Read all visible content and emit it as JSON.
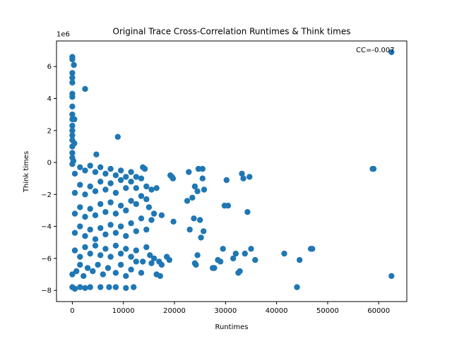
{
  "chart_data": {
    "type": "scatter",
    "title": "Original Trace Cross-Correlation Runtimes & Think times",
    "xlabel": "Runtimes",
    "ylabel": "Think times",
    "y_offset_text": "1e6",
    "annotation": "CC=-0.007",
    "xlim": [
      -3100,
      65500
    ],
    "ylim": [
      -8.7,
      7.6
    ],
    "x_ticks": [
      0,
      10000,
      20000,
      30000,
      40000,
      50000,
      60000
    ],
    "x_tick_labels": [
      "0",
      "10000",
      "20000",
      "30000",
      "40000",
      "50000",
      "60000"
    ],
    "y_ticks": [
      -8,
      -6,
      -4,
      -2,
      0,
      2,
      4,
      6
    ],
    "y_tick_labels": [
      "−8",
      "−6",
      "−4",
      "−2",
      "0",
      "2",
      "4",
      "6"
    ],
    "grid": false,
    "color": "#1f77b4",
    "series": [
      {
        "points": [
          [
            0,
            6.6
          ],
          [
            0,
            6.45
          ],
          [
            300,
            6.1
          ],
          [
            0,
            5.6
          ],
          [
            0,
            5.3
          ],
          [
            0,
            5.0
          ],
          [
            0,
            4.3
          ],
          [
            0,
            4.1
          ],
          [
            2500,
            4.6
          ],
          [
            0,
            3.5
          ],
          [
            0,
            3.0
          ],
          [
            0,
            2.7
          ],
          [
            400,
            2.7
          ],
          [
            0,
            2.3
          ],
          [
            0,
            2.0
          ],
          [
            0,
            1.7
          ],
          [
            0,
            1.4
          ],
          [
            400,
            1.2
          ],
          [
            0,
            1.0
          ],
          [
            0,
            0.6
          ],
          [
            0,
            0.3
          ],
          [
            200,
            0.1
          ],
          [
            0,
            -0.1
          ],
          [
            8900,
            1.6
          ],
          [
            4700,
            0.5
          ],
          [
            0,
            -7.8
          ],
          [
            500,
            -7.9
          ],
          [
            1500,
            -7.8
          ],
          [
            2500,
            -7.85
          ],
          [
            3500,
            -7.8
          ],
          [
            5500,
            -7.8
          ],
          [
            7200,
            -7.8
          ],
          [
            8500,
            -7.8
          ],
          [
            10500,
            -7.85
          ],
          [
            12000,
            -7.8
          ],
          [
            0,
            -7.0
          ],
          [
            800,
            -6.8
          ],
          [
            1500,
            -6.4
          ],
          [
            2200,
            -7.1
          ],
          [
            3000,
            -6.6
          ],
          [
            4000,
            -6.8
          ],
          [
            5000,
            -6.4
          ],
          [
            6000,
            -7.0
          ],
          [
            7000,
            -6.6
          ],
          [
            8500,
            -6.9
          ],
          [
            9500,
            -6.4
          ],
          [
            10500,
            -7.1
          ],
          [
            11500,
            -6.7
          ],
          [
            12500,
            -6.2
          ],
          [
            13500,
            -6.9
          ],
          [
            500,
            -5.5
          ],
          [
            1500,
            -5.9
          ],
          [
            2500,
            -5.3
          ],
          [
            3500,
            -5.7
          ],
          [
            4500,
            -5.2
          ],
          [
            5500,
            -5.8
          ],
          [
            6500,
            -5.4
          ],
          [
            7500,
            -5.9
          ],
          [
            8500,
            -5.2
          ],
          [
            9500,
            -5.7
          ],
          [
            10500,
            -5.4
          ],
          [
            11500,
            -5.9
          ],
          [
            12500,
            -5.5
          ],
          [
            13800,
            -6.2
          ],
          [
            14500,
            -5.3
          ],
          [
            500,
            -4.4
          ],
          [
            1500,
            -4.0
          ],
          [
            2500,
            -4.6
          ],
          [
            3500,
            -4.2
          ],
          [
            4500,
            -4.8
          ],
          [
            5500,
            -4.1
          ],
          [
            6500,
            -4.5
          ],
          [
            7500,
            -3.9
          ],
          [
            8500,
            -4.4
          ],
          [
            9500,
            -4.0
          ],
          [
            10500,
            -4.6
          ],
          [
            11500,
            -3.8
          ],
          [
            12500,
            -4.3
          ],
          [
            13500,
            -3.5
          ],
          [
            14500,
            -4.2
          ],
          [
            500,
            -3.2
          ],
          [
            1500,
            -2.8
          ],
          [
            2500,
            -3.4
          ],
          [
            3500,
            -2.9
          ],
          [
            4500,
            -3.3
          ],
          [
            5500,
            -2.6
          ],
          [
            6500,
            -3.1
          ],
          [
            7500,
            -2.5
          ],
          [
            8500,
            -3.2
          ],
          [
            9500,
            -2.7
          ],
          [
            10500,
            -3.0
          ],
          [
            11500,
            -2.4
          ],
          [
            12500,
            -2.6
          ],
          [
            13500,
            -2.1
          ],
          [
            14500,
            -2.3
          ],
          [
            500,
            -1.9
          ],
          [
            1500,
            -1.4
          ],
          [
            2500,
            -2.0
          ],
          [
            3500,
            -1.5
          ],
          [
            4500,
            -1.8
          ],
          [
            5500,
            -1.2
          ],
          [
            6500,
            -1.7
          ],
          [
            7500,
            -1.3
          ],
          [
            8500,
            -1.9
          ],
          [
            9500,
            -1.1
          ],
          [
            10500,
            -1.6
          ],
          [
            11500,
            -1.2
          ],
          [
            12500,
            -1.6
          ],
          [
            13500,
            -1.0
          ],
          [
            14500,
            -1.5
          ],
          [
            500,
            -0.7
          ],
          [
            1500,
            -0.3
          ],
          [
            2500,
            -0.5
          ],
          [
            3500,
            -0.2
          ],
          [
            4500,
            -0.6
          ],
          [
            5500,
            -0.3
          ],
          [
            6500,
            -0.7
          ],
          [
            7500,
            -0.4
          ],
          [
            8500,
            -0.8
          ],
          [
            9500,
            -0.5
          ],
          [
            10500,
            -0.9
          ],
          [
            11500,
            -0.6
          ],
          [
            12500,
            -0.9
          ],
          [
            13800,
            -0.3
          ],
          [
            14200,
            -0.4
          ],
          [
            15500,
            -1.7
          ],
          [
            16000,
            -3.2
          ],
          [
            15000,
            -2.8
          ],
          [
            15500,
            -3.6
          ],
          [
            16500,
            -1.6
          ],
          [
            15200,
            -5.8
          ],
          [
            16000,
            -6.0
          ],
          [
            15500,
            -6.3
          ],
          [
            17000,
            -6.2
          ],
          [
            17500,
            -6.4
          ],
          [
            17200,
            -7.1
          ],
          [
            16500,
            -7.0
          ],
          [
            17500,
            -3.3
          ],
          [
            18500,
            -5.9
          ],
          [
            19000,
            -6.1
          ],
          [
            19200,
            -0.8
          ],
          [
            19700,
            -1.0
          ],
          [
            19500,
            -0.9
          ],
          [
            19800,
            -3.7
          ],
          [
            22500,
            -2.4
          ],
          [
            22800,
            -0.6
          ],
          [
            23000,
            -4.2
          ],
          [
            23500,
            -2.2
          ],
          [
            23800,
            -3.5
          ],
          [
            24000,
            -1.5
          ],
          [
            24000,
            -6.3
          ],
          [
            24200,
            -6.4
          ],
          [
            24500,
            -1.8
          ],
          [
            24700,
            -0.4
          ],
          [
            24500,
            -5.8
          ],
          [
            25000,
            -3.6
          ],
          [
            25200,
            -4.7
          ],
          [
            25500,
            -0.4
          ],
          [
            25800,
            -1.7
          ],
          [
            25700,
            -4.3
          ],
          [
            25500,
            -1.0
          ],
          [
            27500,
            -6.6
          ],
          [
            27800,
            -6.6
          ],
          [
            28500,
            -6.1
          ],
          [
            29000,
            -6.2
          ],
          [
            29500,
            -5.4
          ],
          [
            29800,
            -2.7
          ],
          [
            30200,
            -1.1
          ],
          [
            30500,
            -2.7
          ],
          [
            31500,
            -6.0
          ],
          [
            32000,
            -5.7
          ],
          [
            32500,
            -6.9
          ],
          [
            32800,
            -6.8
          ],
          [
            33200,
            -0.7
          ],
          [
            33500,
            -1.0
          ],
          [
            33800,
            -5.7
          ],
          [
            34300,
            -3.1
          ],
          [
            34700,
            -0.9
          ],
          [
            35000,
            -5.4
          ],
          [
            35800,
            -6.1
          ],
          [
            41500,
            -5.7
          ],
          [
            44000,
            -7.8
          ],
          [
            44500,
            -6.1
          ],
          [
            46700,
            -5.4
          ],
          [
            47000,
            -5.4
          ],
          [
            58800,
            -0.4
          ],
          [
            59000,
            -0.4
          ],
          [
            62500,
            6.9
          ],
          [
            62500,
            -7.1
          ]
        ]
      }
    ]
  }
}
